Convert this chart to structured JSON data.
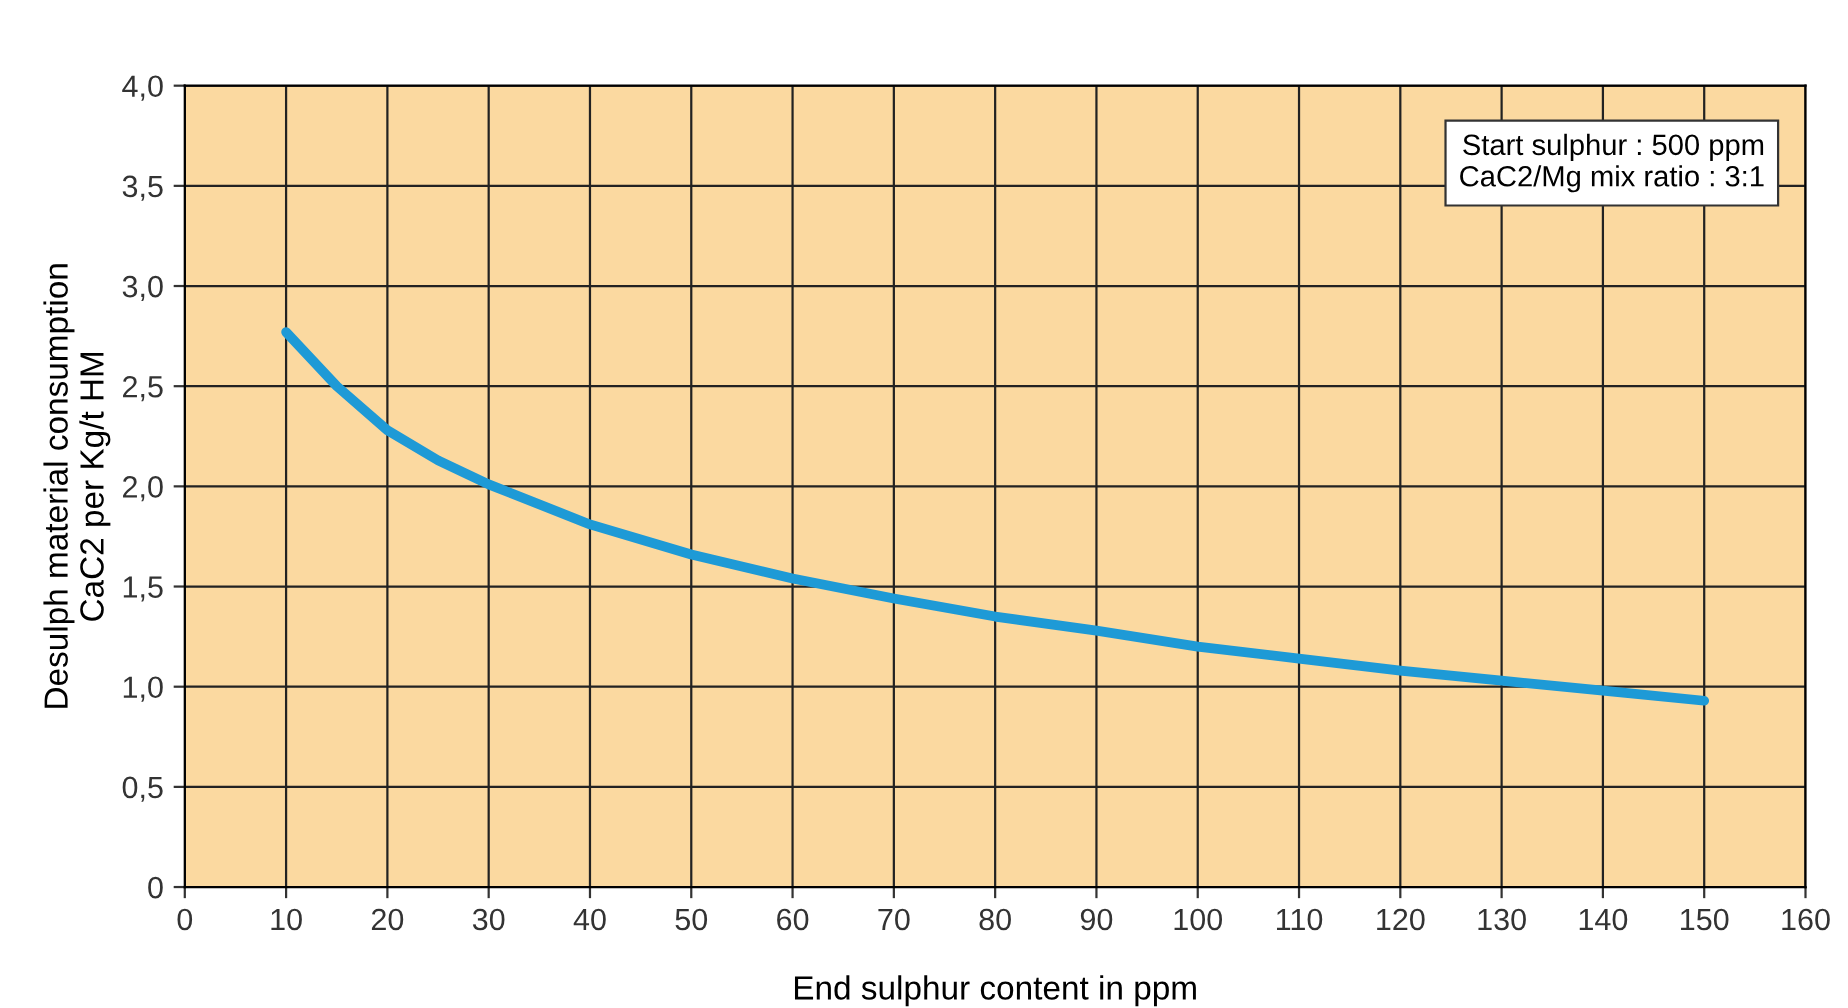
{
  "chart_data": {
    "type": "line",
    "xlabel": "End sulphur content in ppm",
    "ylabel": "Desulph material consumption\nCaC2 per Kg/t HM",
    "annotations": [
      "Start sulphur : 500 ppm\nCaC2/Mg mix ratio : 3:1"
    ],
    "x": [
      10,
      15,
      20,
      25,
      30,
      40,
      50,
      60,
      70,
      80,
      90,
      100,
      110,
      120,
      130,
      140,
      150
    ],
    "series": [
      {
        "color": "#1e9ad6",
        "values": [
          2.77,
          2.5,
          2.28,
          2.13,
          2.01,
          1.81,
          1.66,
          1.54,
          1.44,
          1.35,
          1.28,
          1.2,
          1.14,
          1.08,
          1.03,
          0.98,
          0.93
        ]
      }
    ],
    "xlim": [
      0,
      160
    ],
    "ylim": [
      0,
      4.0
    ],
    "xticks": [
      0,
      10,
      20,
      30,
      40,
      50,
      60,
      70,
      80,
      90,
      100,
      110,
      120,
      130,
      140,
      150,
      160
    ],
    "yticks": [
      0,
      {
        "value": 0.5,
        "label": "0,5"
      },
      {
        "value": 1.0,
        "label": "1,0"
      },
      {
        "value": 1.5,
        "label": "1,5"
      },
      {
        "value": 2.0,
        "label": "2,0"
      },
      {
        "value": 2.5,
        "label": "2,5"
      },
      {
        "value": 3.0,
        "label": "3,0"
      },
      {
        "value": 3.5,
        "label": "3,5"
      },
      {
        "value": 4.0,
        "label": "4,0"
      }
    ],
    "grid": true,
    "marker": "none",
    "line_style": "solid",
    "legend": false
  }
}
